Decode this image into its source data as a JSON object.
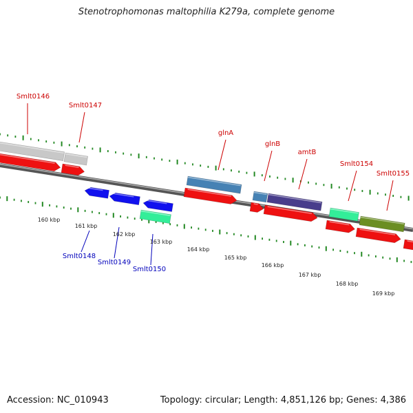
{
  "title": "Stenotrophomonas maltophilia K279a, complete genome",
  "footer": {
    "accession": "Accession: NC_010943",
    "stats": "Topology: circular; Length: 4,851,126 bp; Genes: 4,386"
  },
  "colors": {
    "cds": "#ee1111",
    "plus_label": "#cc0000",
    "minus_label": "#0000bb",
    "ticks": "#228822",
    "backbone": "#888888"
  },
  "kbp_labels": [
    "160 kbp",
    "161 kbp",
    "162 kbp",
    "163 kbp",
    "164 kbp",
    "165 kbp",
    "166 kbp",
    "167 kbp",
    "168 kbp",
    "169 kbp"
  ],
  "forward_genes": [
    {
      "label": "Smlt0146",
      "color": "#c8c8c8"
    },
    {
      "label": "Smlt0147",
      "color": "#c8c8c8"
    },
    {
      "label": "glnA",
      "color": "#4682b4"
    },
    {
      "label": "glnB",
      "color": "#4682b4"
    },
    {
      "label": "amtB",
      "color": "#483d8b"
    },
    {
      "label": "Smlt0154",
      "color": "#33ee99"
    },
    {
      "label": "Smlt0155",
      "color": "#6b8e23"
    }
  ],
  "reverse_genes": [
    {
      "label": "Smlt0148",
      "color": "#1111ee"
    },
    {
      "label": "Smlt0149",
      "color": "#1111ee"
    },
    {
      "label": "Smlt0150",
      "color": "#1111ee"
    }
  ]
}
